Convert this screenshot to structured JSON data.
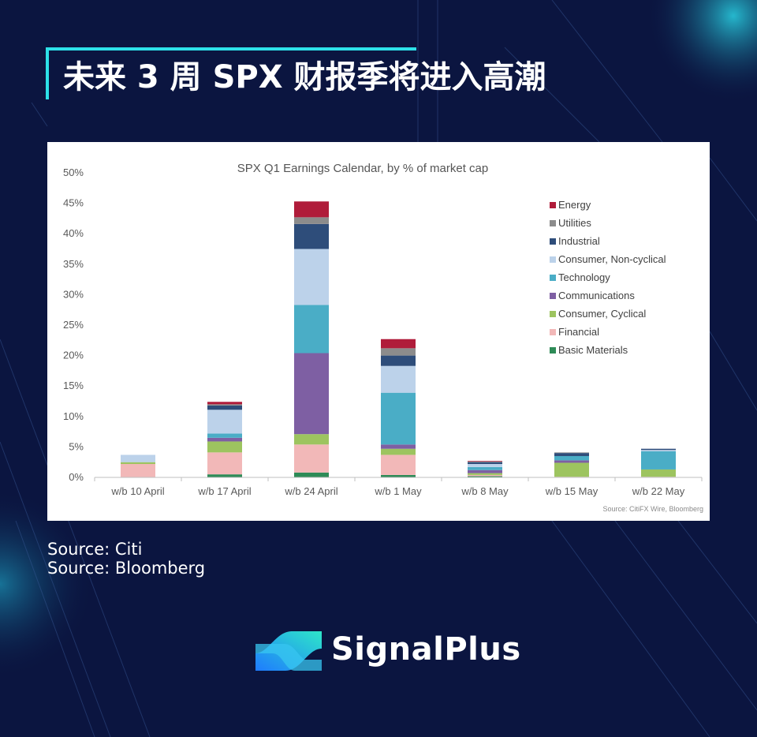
{
  "page": {
    "headline": "未来 3 周 SPX 财报季将进入高潮",
    "sources": [
      "Source: Citi",
      "Source: Bloomberg"
    ],
    "brand_name": "SignalPlus",
    "colors": {
      "background": "#0b1540",
      "accent": "#2de0e8",
      "text": "#ffffff"
    }
  },
  "chart_data": {
    "type": "bar",
    "stacked": true,
    "title": "SPX Q1 Earnings Calendar, by % of market cap",
    "source_note": "Source: CitiFX Wire, Bloomberg",
    "ylim": [
      0,
      50
    ],
    "yticks": [
      0,
      5,
      10,
      15,
      20,
      25,
      30,
      35,
      40,
      45,
      50
    ],
    "ytick_format": "percent",
    "grid": false,
    "legend_position": "top-right",
    "categories": [
      "w/b 10 April",
      "w/b 17 April",
      "w/b 24 April",
      "w/b 1 May",
      "w/b 8 May",
      "w/b 15 May",
      "w/b 22 May"
    ],
    "series": [
      {
        "name": "Basic Materials",
        "color": "#2e8b57",
        "values": [
          0.0,
          0.5,
          0.8,
          0.4,
          0.2,
          0.0,
          0.0
        ]
      },
      {
        "name": "Financial",
        "color": "#f2b8b8",
        "values": [
          2.2,
          3.6,
          4.6,
          3.3,
          0.2,
          0.1,
          0.1
        ]
      },
      {
        "name": "Consumer, Cyclical",
        "color": "#9dc45f",
        "values": [
          0.3,
          1.8,
          1.7,
          1.0,
          0.3,
          2.3,
          1.2
        ]
      },
      {
        "name": "Communications",
        "color": "#7e5fa3",
        "values": [
          0.0,
          0.6,
          13.3,
          0.7,
          0.5,
          0.4,
          0.0
        ]
      },
      {
        "name": "Technology",
        "color": "#4aadc6",
        "values": [
          0.0,
          0.7,
          7.9,
          8.5,
          0.5,
          0.7,
          3.0
        ]
      },
      {
        "name": "Consumer, Non-cyclical",
        "color": "#bcd2ea",
        "values": [
          1.2,
          3.9,
          9.2,
          4.4,
          0.5,
          0.0,
          0.2
        ]
      },
      {
        "name": "Industrial",
        "color": "#2e4d7a",
        "values": [
          0.0,
          0.7,
          4.1,
          1.7,
          0.3,
          0.5,
          0.2
        ]
      },
      {
        "name": "Utilities",
        "color": "#8c8c8c",
        "values": [
          0.0,
          0.2,
          1.1,
          1.2,
          0.1,
          0.1,
          0.0
        ]
      },
      {
        "name": "Energy",
        "color": "#b01c3a",
        "values": [
          0.0,
          0.4,
          2.6,
          1.5,
          0.1,
          0.0,
          0.0
        ]
      }
    ],
    "legend_order": [
      "Energy",
      "Utilities",
      "Industrial",
      "Consumer, Non-cyclical",
      "Technology",
      "Communications",
      "Consumer, Cyclical",
      "Financial",
      "Basic Materials"
    ]
  }
}
